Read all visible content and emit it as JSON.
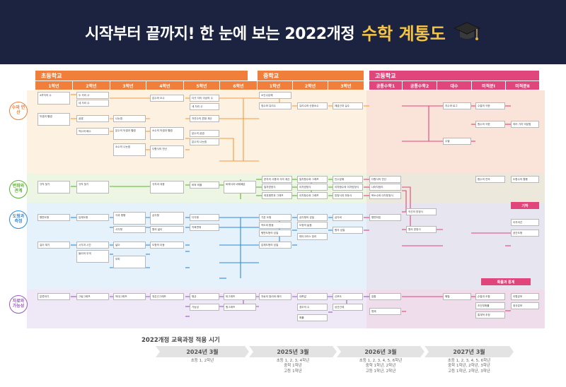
{
  "header": {
    "title_main": "시작부터 끝까지! 한 눈에 보는 2022개정",
    "title_accent": "수학 계통도",
    "bg_color": "#1c2340",
    "accent_color": "#f6c445",
    "icon": "graduation-cap-icon"
  },
  "stages": [
    {
      "label": "초등학교",
      "color": "#f07f3c"
    },
    {
      "label": "중학교",
      "color": "#f07f3c"
    },
    {
      "label": "고등학교",
      "color": "#e0457b"
    }
  ],
  "grades": [
    "1학년",
    "2학년",
    "3학년",
    "4학년",
    "5학년",
    "6학년",
    "1학년",
    "2학년",
    "3학년",
    "공통수학1",
    "공통수학2",
    "대수",
    "미적분Ⅰ",
    "미적분Ⅱ"
  ],
  "areas": [
    {
      "label": "수와 연산",
      "color": "#f07f3c"
    },
    {
      "label": "변화와 관계",
      "color": "#5bb430"
    },
    {
      "label": "도형과 측정",
      "color": "#2f8bd8"
    },
    {
      "label": "자료와 가능성",
      "color": "#9b59c2"
    }
  ],
  "side_tags": [
    "기하",
    "확률과 통계"
  ],
  "nodes": {
    "num": [
      "4까지의 수",
      "네 자리 수",
      "분수와 소수",
      "다섯 자리 이상의 수",
      "약수와 배수",
      "분수의 나눗셈",
      "소인수분해",
      "유리수와 순환소수",
      "제곱근과 실수",
      "다항식의 연산",
      "지수와 로그",
      "수열의 극한",
      "두 자리 수",
      "세 자리 수",
      "곱셈",
      "나눗셈",
      "자연수의 혼합 계산",
      "분수의 덧셈과 뺄셈",
      "분수의 곱셈",
      "소수의 나눗셈",
      "정수와 유리수",
      "수열",
      "함수의 극한",
      "덧셈과 뺄셈",
      "소수의 덧셈과 뺄셈",
      "여러 가지 미분법"
    ],
    "rel": [
      "규칙 찾기",
      "규칙 찾기",
      "규칙과 대응",
      "비와 비율",
      "비례식과 비례배분",
      "문자의 사용과 식의 계산",
      "일차방정식",
      "좌표평면과 그래프",
      "일차함수와 그래프",
      "이차방정식",
      "이차함수와 그래프",
      "다항식의 연산",
      "나머지정리",
      "인수분해",
      "복소수와 이차방정식",
      "이차함수와 이차방정식",
      "방정식과 부등식",
      "함수의 연속",
      "도함수의 활용"
    ],
    "geo": [
      "평면도형",
      "입체도형",
      "각과 평행",
      "삼각형",
      "사각형",
      "다각형",
      "원의 넓이",
      "직육면체",
      "기본 도형",
      "작도와 합동",
      "평면도형의 성질",
      "입체도형의 성질",
      "삼각형의 성질",
      "도형의 닮음",
      "피타고라스 정리",
      "삼각비",
      "원의 성질",
      "평면좌표",
      "직선의 방정식",
      "원의 방정식",
      "도형의 이동",
      "길이 재기",
      "시각과 시간",
      "들이와 무게",
      "넓이",
      "부피",
      "이차곡선",
      "공간도형"
    ],
    "data": [
      "분류하기",
      "그림그래프",
      "막대그래프",
      "꺾은선그래프",
      "평균",
      "가능성",
      "띠그래프",
      "원그래프",
      "자료의 정리와 해석",
      "대푯값",
      "산포도",
      "상관관계",
      "경우의 수",
      "확률",
      "집합",
      "명제",
      "순열과 조합",
      "행렬",
      "조건부확률",
      "통계적 추정",
      "이항분포",
      "정규분포"
    ]
  },
  "timeline": {
    "heading": "2022개정 교육과정 적용 시기",
    "segments": [
      {
        "year": "2024년 3월",
        "desc": "초등 1, 2학년"
      },
      {
        "year": "2025년 3월",
        "desc": "초등 1, 2, 3, 4학년\n중학 1학년\n고등 1학년"
      },
      {
        "year": "2026년 3월",
        "desc": "초등 1, 2, 3, 4, 5, 6학년\n중학 1학년, 2학년\n고등 1학년, 2학년"
      },
      {
        "year": "2027년 3월",
        "desc": "초등 1, 2, 3, 4, 5, 6학년\n중학 1학년, 2학년, 3학년\n고등 1학년, 2학년, 3학년"
      }
    ]
  }
}
